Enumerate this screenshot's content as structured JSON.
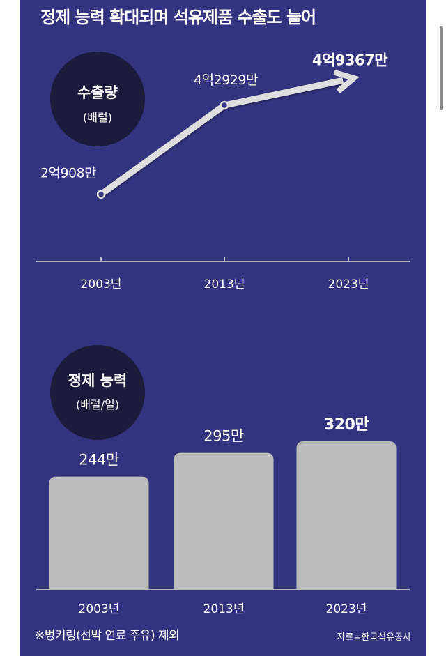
{
  "headline": "정제 능력 확대되며 석유제품 수출도 늘어",
  "footnote": "※벙커링(선박 연료 주유) 제외",
  "source": "자료=한국석유공사",
  "colors": {
    "background": "#343380",
    "line": "#dedede",
    "badge": "#1b1b3b",
    "bar": "#bcbcbc",
    "text": "#ffffff"
  },
  "chart_data": [
    {
      "type": "line",
      "badge_title": "수출량",
      "badge_unit": "(배럴)",
      "categories": [
        "2003년",
        "2013년",
        "2023년"
      ],
      "values": [
        209080000,
        429290000,
        493670000
      ],
      "labels": [
        "2억908만",
        "4억2929만",
        "4억9367만"
      ],
      "ylim": [
        0,
        500000000
      ],
      "grid": false
    },
    {
      "type": "bar",
      "badge_title": "정제 능력",
      "badge_unit": "(배럴/일)",
      "categories": [
        "2003년",
        "2013년",
        "2023년"
      ],
      "values": [
        2440000,
        2950000,
        3200000
      ],
      "labels": [
        "244만",
        "295만",
        "320만"
      ],
      "ylim": [
        0,
        3200000
      ],
      "grid": false
    }
  ]
}
